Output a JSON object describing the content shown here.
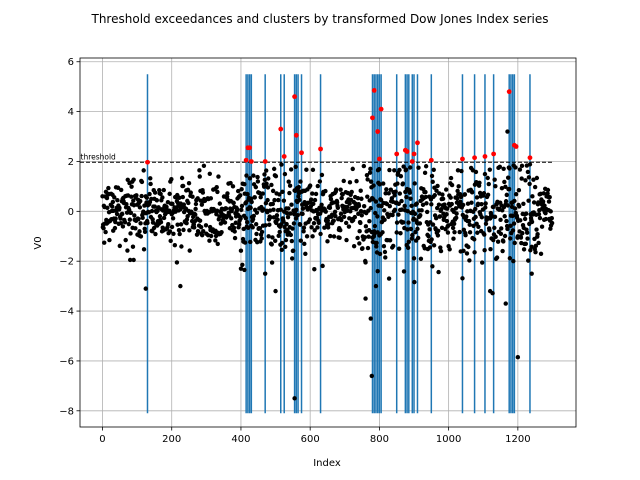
{
  "chart_data": {
    "type": "scatter",
    "title": "Threshold exceedances and clusters by transformed Dow Jones Index series",
    "xlabel": "Index",
    "ylabel": "V0",
    "xlim": [
      -65,
      1368
    ],
    "ylim": [
      -8.65,
      6.15
    ],
    "xticks": [
      0,
      200,
      400,
      600,
      800,
      1000,
      1200
    ],
    "yticks": [
      -8,
      -6,
      -4,
      -2,
      0,
      2,
      4,
      6
    ],
    "grid": true,
    "threshold": {
      "value": 1.97,
      "label": "threshold",
      "color": "#000000",
      "style": "dashed",
      "x_range": [
        -65,
        1300
      ]
    },
    "cluster_lines": {
      "color": "#1f77b4",
      "ymin": -8.1,
      "ymax": 5.5,
      "x": [
        130,
        415,
        420,
        425,
        430,
        470,
        515,
        525,
        555,
        560,
        565,
        575,
        630,
        780,
        785,
        790,
        795,
        800,
        805,
        850,
        875,
        880,
        885,
        895,
        900,
        910,
        950,
        1040,
        1075,
        1105,
        1130,
        1175,
        1180,
        1185,
        1190,
        1235
      ]
    },
    "exceedances": {
      "color": "#ff0000",
      "points": [
        [
          130,
          1.97
        ],
        [
          415,
          2.05
        ],
        [
          420,
          2.55
        ],
        [
          425,
          2.55
        ],
        [
          430,
          2.0
        ],
        [
          470,
          2.0
        ],
        [
          515,
          3.3
        ],
        [
          525,
          2.2
        ],
        [
          555,
          4.6
        ],
        [
          560,
          3.05
        ],
        [
          575,
          2.35
        ],
        [
          630,
          2.5
        ],
        [
          780,
          3.75
        ],
        [
          785,
          4.85
        ],
        [
          795,
          3.2
        ],
        [
          800,
          2.1
        ],
        [
          805,
          4.1
        ],
        [
          850,
          2.3
        ],
        [
          875,
          2.45
        ],
        [
          880,
          2.4
        ],
        [
          895,
          2.0
        ],
        [
          900,
          2.3
        ],
        [
          910,
          2.75
        ],
        [
          950,
          2.05
        ],
        [
          1040,
          2.1
        ],
        [
          1075,
          2.15
        ],
        [
          1105,
          2.2
        ],
        [
          1130,
          2.3
        ],
        [
          1175,
          4.8
        ],
        [
          1190,
          2.65
        ],
        [
          1195,
          2.6
        ],
        [
          1235,
          2.15
        ]
      ]
    },
    "series": [
      {
        "color": "#000000",
        "notable_points": [
          [
            125,
            -3.1
          ],
          [
            225,
            -3.0
          ],
          [
            215,
            -2.05
          ],
          [
            80,
            -1.95
          ],
          [
            90,
            -1.95
          ],
          [
            400,
            -2.3
          ],
          [
            410,
            -2.35
          ],
          [
            470,
            -2.5
          ],
          [
            500,
            -3.2
          ],
          [
            555,
            -7.5
          ],
          [
            760,
            -3.5
          ],
          [
            775,
            -4.3
          ],
          [
            778,
            -6.6
          ],
          [
            790,
            -3.0
          ],
          [
            795,
            -2.4
          ],
          [
            1120,
            -3.2
          ],
          [
            1165,
            -3.7
          ],
          [
            1200,
            -5.85
          ],
          [
            1240,
            -2.5
          ],
          [
            1170,
            3.2
          ]
        ]
      }
    ]
  }
}
